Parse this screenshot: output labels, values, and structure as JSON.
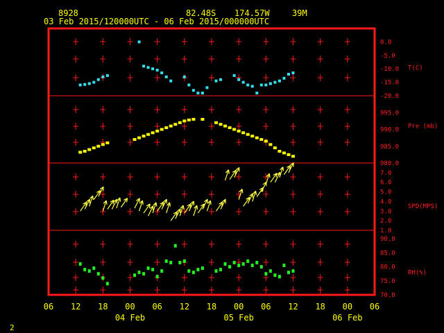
{
  "header": {
    "station_id": "8928",
    "lat": "82.48S",
    "lon": "174.57W",
    "elev": "39M",
    "time_range": "03 Feb 2015/120000UTC - 06 Feb 2015/000000UTC"
  },
  "page_number": "2",
  "colors": {
    "frame": "#ff1a1a",
    "temp": "#33e0f0",
    "pressure": "#ffff00",
    "wind": "#ffff44",
    "rh": "#22ee22",
    "text": "#ffff00"
  },
  "chart_data": [
    {
      "type": "scatter",
      "ylabel": "T(C)",
      "ylim": [
        -20,
        5
      ],
      "yticks": [
        "0.0",
        "-5.0",
        "-10.0",
        "-15.0",
        "-20.0"
      ],
      "ytick_values": [
        0,
        -5,
        -10,
        -15,
        -20
      ],
      "x": [
        13,
        14,
        15,
        16,
        17,
        18,
        19,
        26,
        27,
        28,
        29,
        30,
        31,
        32,
        33,
        36,
        37,
        38,
        39,
        40,
        41,
        43,
        44,
        47,
        48,
        49,
        50,
        51,
        52,
        53,
        54,
        55,
        56,
        57,
        58,
        59,
        60
      ],
      "values": [
        -16,
        -15.8,
        -15.5,
        -15,
        -14,
        -13,
        -12.5,
        0,
        -9,
        -9.5,
        -10,
        -10.5,
        -11.5,
        -13,
        -14.5,
        -13,
        -16,
        -18,
        -19,
        -19,
        -17,
        -14.5,
        -14,
        -12.5,
        -14,
        -15,
        -16,
        -16.5,
        -19,
        -16,
        -16,
        -15.5,
        -15,
        -14.5,
        -13.5,
        -12,
        -11.5
      ]
    },
    {
      "type": "scatter",
      "ylabel": "Pre (mb)",
      "ylim": [
        980,
        1000
      ],
      "yticks": [
        "995.0",
        "990.0",
        "985.0",
        "980.0"
      ],
      "ytick_values": [
        995,
        990,
        985,
        980
      ],
      "x": [
        13,
        14,
        15,
        16,
        17,
        18,
        19,
        25,
        26,
        27,
        28,
        29,
        30,
        31,
        32,
        33,
        34,
        35,
        36,
        37,
        38,
        40,
        43,
        44,
        45,
        46,
        47,
        48,
        49,
        50,
        51,
        52,
        53,
        54,
        55,
        56,
        57,
        58,
        59,
        60
      ],
      "values": [
        983.2,
        983.5,
        984,
        984.5,
        985,
        985.5,
        986,
        987,
        987.5,
        988,
        988.5,
        989,
        989.5,
        990,
        990.5,
        991,
        991.5,
        992,
        992.5,
        992.8,
        993,
        993,
        992,
        991.5,
        991,
        990.5,
        990,
        989.5,
        989,
        988.5,
        988,
        987.5,
        987,
        986.5,
        985.5,
        984.5,
        983.5,
        983,
        982.5,
        982
      ]
    },
    {
      "type": "scatter",
      "ylabel": "SPD(MPS)",
      "ylim": [
        1,
        8
      ],
      "yticks": [
        "7.0",
        "6.0",
        "5.0",
        "4.0",
        "3.0",
        "2.0",
        "1.0"
      ],
      "ytick_values": [
        7,
        6,
        5,
        4,
        3,
        2,
        1
      ],
      "x": [
        13,
        14,
        15,
        16,
        17,
        18,
        19,
        20,
        21,
        22,
        25,
        26,
        27,
        28,
        29,
        30,
        31,
        32,
        33,
        34,
        35,
        36,
        37,
        38,
        39,
        40,
        41,
        43,
        44,
        45,
        46,
        47,
        48,
        49,
        50,
        51,
        52,
        53,
        54,
        55,
        56,
        57,
        58,
        59
      ],
      "values": [
        3,
        3.2,
        3.5,
        4.2,
        4.5,
        3,
        3.2,
        3.2,
        3.3,
        3.4,
        3.3,
        3,
        2.8,
        2.5,
        2.8,
        3,
        3.2,
        2.8,
        2,
        2.2,
        2.5,
        2.8,
        3,
        2.5,
        2.8,
        3.2,
        3,
        3,
        3.2,
        6.2,
        6.3,
        6.5,
        4.2,
        3.5,
        3.8,
        4,
        4.5,
        5,
        5.8,
        6,
        6,
        6.5,
        6.8,
        7
      ]
    },
    {
      "type": "scatter",
      "ylabel": "RH(%)",
      "ylim": [
        70,
        93
      ],
      "yticks": [
        "90.0",
        "85.0",
        "80.0",
        "75.0",
        "70.0"
      ],
      "ytick_values": [
        90,
        85,
        80,
        75,
        70
      ],
      "x": [
        13,
        14,
        15,
        16,
        17,
        18,
        19,
        25,
        26,
        27,
        28,
        29,
        30,
        31,
        32,
        33,
        34,
        35,
        36,
        37,
        38,
        39,
        40,
        43,
        44,
        45,
        46,
        47,
        48,
        49,
        50,
        51,
        52,
        53,
        54,
        55,
        56,
        57,
        58,
        59,
        60
      ],
      "values": [
        81,
        79,
        78.5,
        79.5,
        77.5,
        76,
        74,
        77,
        78,
        77.5,
        79.5,
        79,
        76.5,
        78.5,
        82,
        81.5,
        87.5,
        81.5,
        82,
        78.5,
        78,
        79,
        79.5,
        78.5,
        79,
        81,
        80,
        81.5,
        80.5,
        81,
        82,
        80.5,
        81.5,
        80,
        77.5,
        78.5,
        77,
        76.5,
        80.5,
        78,
        78.5
      ]
    },
    {
      "type": "scatter",
      "x_ticks": [
        "06",
        "12",
        "18",
        "00",
        "06",
        "12",
        "18",
        "00",
        "06",
        "12",
        "18",
        "00",
        "06"
      ],
      "x_tick_values": [
        6,
        12,
        18,
        24,
        30,
        36,
        42,
        48,
        54,
        60,
        66,
        72,
        78
      ],
      "x_tick_hours": [
        6,
        12,
        18,
        24,
        30,
        36,
        42,
        48,
        54,
        60,
        66,
        72,
        78
      ],
      "day_labels": [
        "04 Feb",
        "05 Feb",
        "06 Feb"
      ],
      "day_label_hours": [
        24,
        48,
        72
      ],
      "xlim": [
        6,
        78
      ]
    }
  ]
}
